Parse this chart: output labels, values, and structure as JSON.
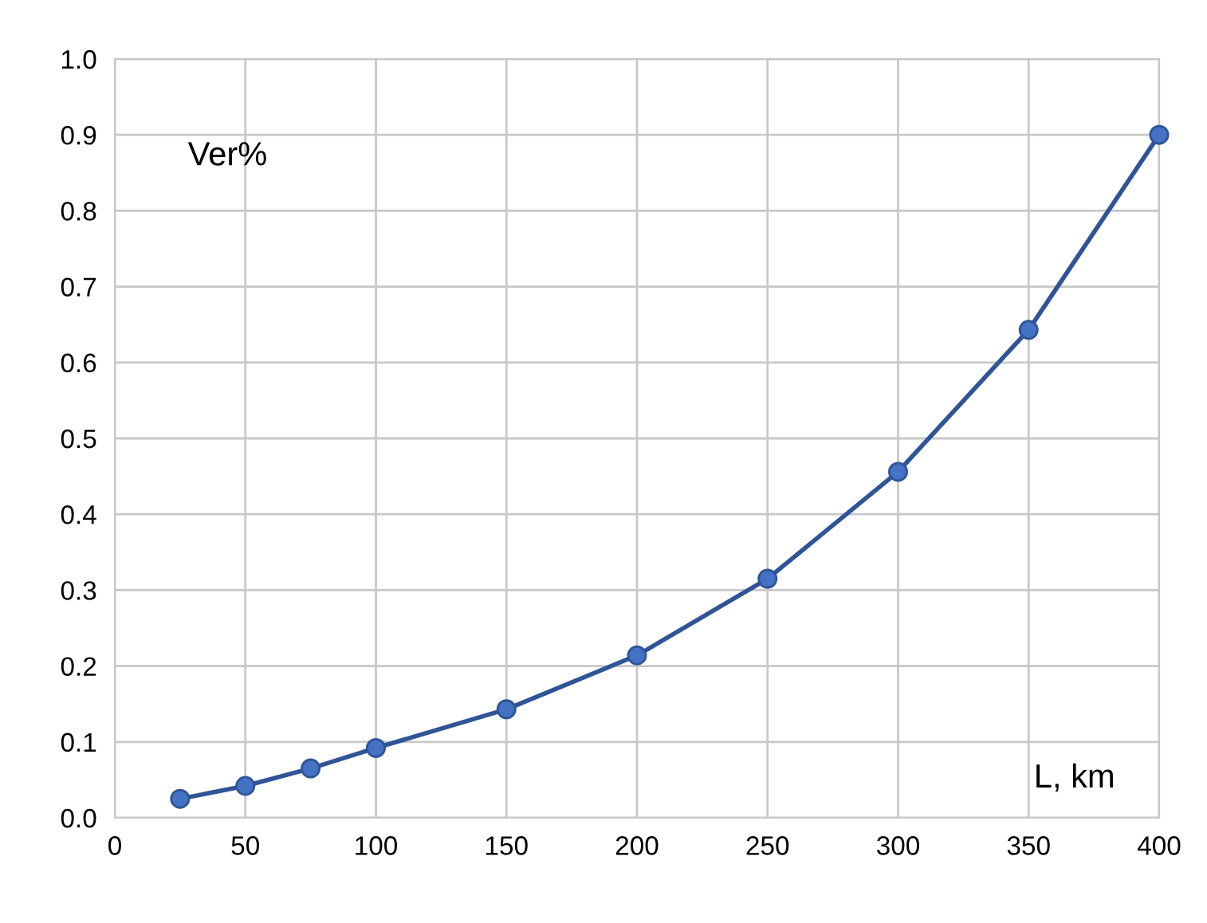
{
  "chart_data": {
    "type": "line",
    "xlabel": "L, km",
    "ylabel": "Ver%",
    "x": [
      25,
      50,
      75,
      100,
      150,
      200,
      250,
      300,
      350,
      400
    ],
    "series": [
      {
        "color": "#2f5597",
        "values": [
          0.025,
          0.042,
          0.065,
          0.092,
          0.143,
          0.214,
          0.315,
          0.456,
          0.643,
          0.9
        ]
      }
    ],
    "xlim": [
      0,
      400
    ],
    "xticks": [
      0,
      50,
      100,
      150,
      200,
      250,
      300,
      350,
      400
    ],
    "ylim": [
      0,
      1.0
    ],
    "yticks": [
      {
        "value": 0,
        "label": "0.0"
      },
      {
        "value": 0.1,
        "label": "0.1"
      },
      {
        "value": 0.2,
        "label": "0.2"
      },
      {
        "value": 0.3,
        "label": "0.3"
      },
      {
        "value": 0.4,
        "label": "0.4"
      },
      {
        "value": 0.5,
        "label": "0.5"
      },
      {
        "value": 0.6,
        "label": "0.6"
      },
      {
        "value": 0.7,
        "label": "0.7"
      },
      {
        "value": 0.8,
        "label": "0.8"
      },
      {
        "value": 0.9,
        "label": "0.9"
      },
      {
        "value": 1.0,
        "label": "1.0"
      }
    ],
    "grid": true,
    "marker": "circle",
    "line_style": "solid"
  }
}
